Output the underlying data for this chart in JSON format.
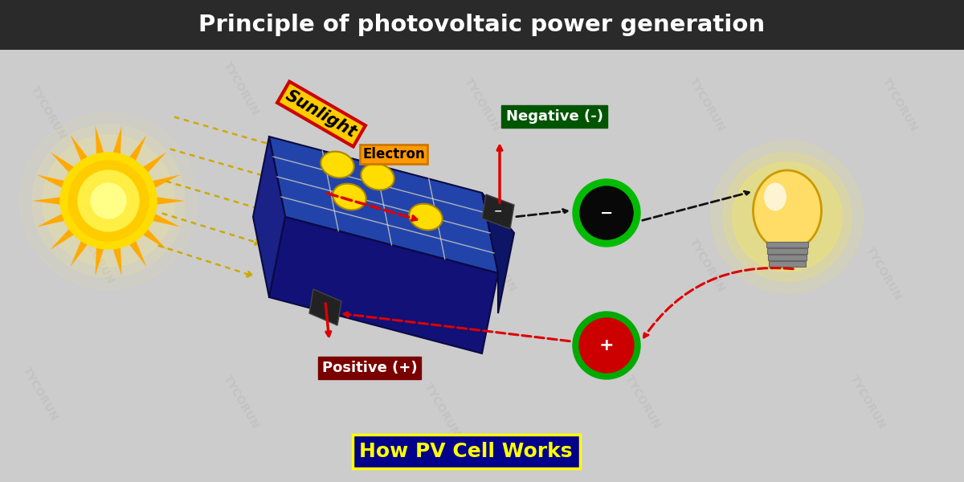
{
  "title": "Principle of photovoltaic power generation",
  "title_bg": "#2a2a2a",
  "title_color": "#ffffff",
  "bg_color": "#cccccc",
  "subtitle": "How PV Cell Works",
  "subtitle_bg": "#00008b",
  "subtitle_border": "#ffff00",
  "subtitle_color": "#ffff00",
  "sunlight_label": "Sunlight",
  "sunlight_label_bg": "#ffcc00",
  "sunlight_label_border": "#cc0000",
  "electron_label": "Electron",
  "electron_label_bg": "#ff9900",
  "negative_label": "Negative (-)",
  "negative_label_bg": "#005500",
  "negative_label_color": "#ffffff",
  "positive_label": "Positive (+)",
  "positive_label_bg": "#7a0000",
  "positive_label_color": "#ffffff",
  "watermark": "TYCORUN",
  "watermark_color": "#999999",
  "watermark_alpha": 0.18,
  "panel_top_color": "#2244aa",
  "panel_side_color": "#111166",
  "panel_edge_color": "#0a0a44",
  "panel_grid_color": "#8899dd",
  "panel_frame_color": "#e8e0c0",
  "electron_color": "#ffdd00",
  "neg_outer_color": "#00bb00",
  "neg_inner_color": "#080808",
  "pos_color": "#cc0000",
  "pos_border_color": "#00aa00",
  "connector_color": "#222222",
  "red_arrow_color": "#dd0000",
  "black_arrow_color": "#111111",
  "sun_body_color": "#ffcc00",
  "sun_ray_color": "#ffaa00",
  "sunray_dotted_color": "#ccaa00",
  "bulb_glow_color": "#ffee44",
  "bulb_glass_color": "#ffdd66"
}
